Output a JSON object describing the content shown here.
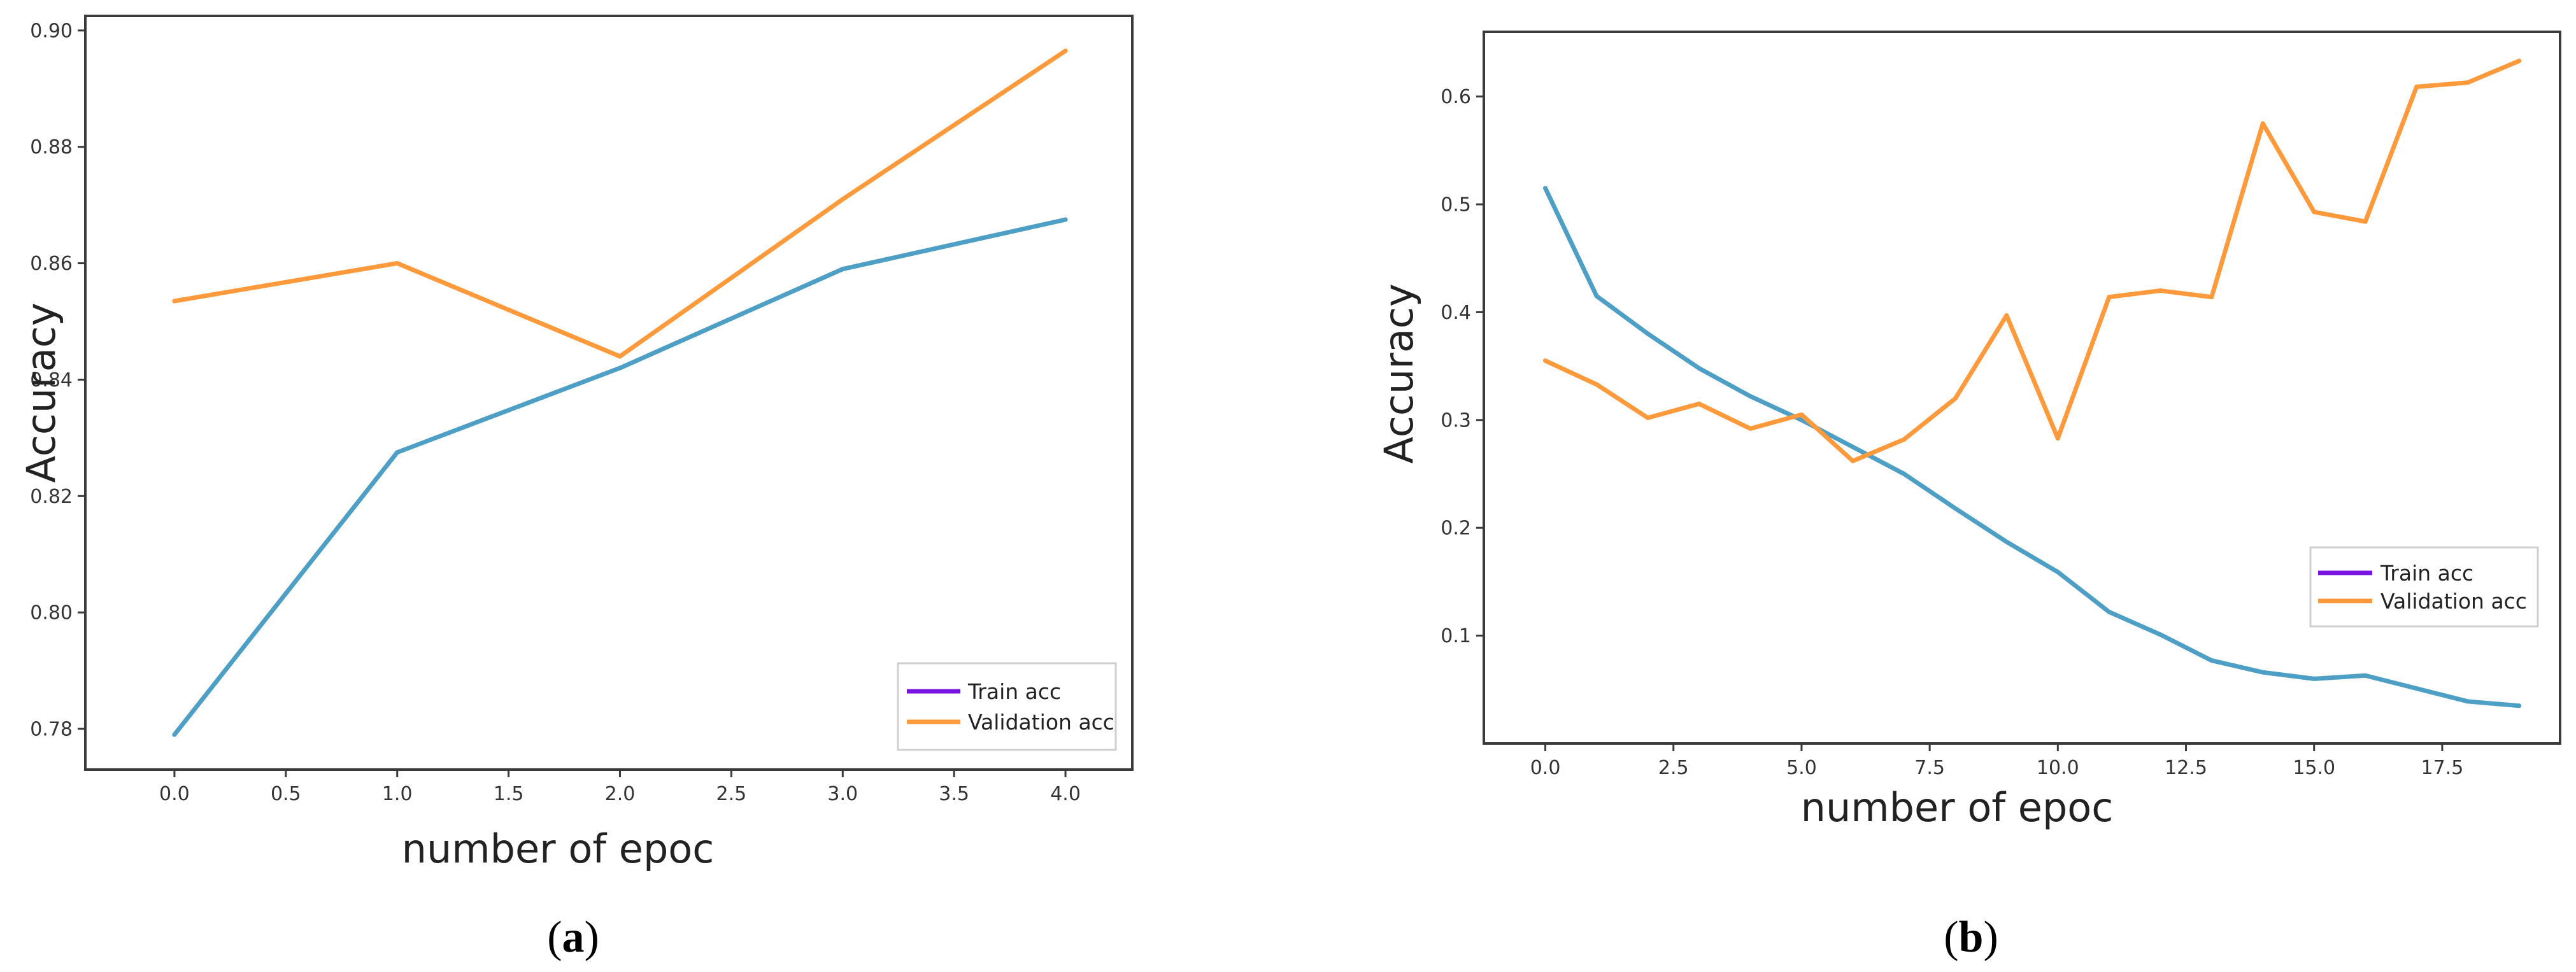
{
  "chart_data": [
    {
      "type": "line",
      "panel_label": "a",
      "title": "",
      "xlabel": "number of epoc",
      "ylabel": "Accuracy",
      "xlim": [
        -0.4,
        4.3
      ],
      "ylim": [
        0.773,
        0.9025
      ],
      "xticks": [
        0.0,
        0.5,
        1.0,
        1.5,
        2.0,
        2.5,
        3.0,
        3.5,
        4.0
      ],
      "xtick_labels": [
        "0.0",
        "0.5",
        "1.0",
        "1.5",
        "2.0",
        "2.5",
        "3.0",
        "3.5",
        "4.0"
      ],
      "yticks": [
        0.78,
        0.8,
        0.82,
        0.84,
        0.86,
        0.88,
        0.9
      ],
      "ytick_labels": [
        "0.78",
        "0.80",
        "0.82",
        "0.84",
        "0.86",
        "0.88",
        "0.90"
      ],
      "grid": false,
      "legend_position": "bottom-right",
      "x": [
        0,
        1,
        2,
        3,
        4
      ],
      "series": [
        {
          "name": "Train acc",
          "legend_color": "#7a12e0",
          "line_color": "#4e9fc6",
          "values": [
            0.779,
            0.8275,
            0.842,
            0.859,
            0.8675
          ]
        },
        {
          "name": "Validation acc",
          "legend_color": "#ff9a3c",
          "line_color": "#ff9a3c",
          "values": [
            0.8535,
            0.86,
            0.844,
            0.871,
            0.8965
          ]
        }
      ]
    },
    {
      "type": "line",
      "panel_label": "b",
      "title": "",
      "xlabel": "number of epoc",
      "ylabel": "Accuracy",
      "xlim": [
        -1.2,
        19.8
      ],
      "ylim": [
        0.0,
        0.66
      ],
      "xticks": [
        0.0,
        2.5,
        5.0,
        7.5,
        10.0,
        12.5,
        15.0,
        17.5
      ],
      "xtick_labels": [
        "0.0",
        "2.5",
        "5.0",
        "7.5",
        "10.0",
        "12.5",
        "15.0",
        "17.5"
      ],
      "yticks": [
        0.1,
        0.2,
        0.3,
        0.4,
        0.5,
        0.6
      ],
      "ytick_labels": [
        "0.1",
        "0.2",
        "0.3",
        "0.4",
        "0.5",
        "0.6"
      ],
      "grid": false,
      "legend_position": "center-right",
      "x": [
        0,
        1,
        2,
        3,
        4,
        5,
        6,
        7,
        8,
        9,
        10,
        11,
        12,
        13,
        14,
        15,
        16,
        17,
        18,
        19
      ],
      "series": [
        {
          "name": "Train acc",
          "legend_color": "#7a12e0",
          "line_color": "#4e9fc6",
          "values": [
            0.515,
            0.415,
            0.38,
            0.348,
            0.322,
            0.3,
            0.275,
            0.25,
            0.218,
            0.187,
            0.159,
            0.122,
            0.101,
            0.077,
            0.066,
            0.06,
            0.063,
            0.051,
            0.039,
            0.035
          ]
        },
        {
          "name": "Validation acc",
          "legend_color": "#ff9a3c",
          "line_color": "#ff9a3c",
          "values": [
            0.355,
            0.333,
            0.302,
            0.315,
            0.292,
            0.305,
            0.262,
            0.282,
            0.32,
            0.397,
            0.283,
            0.414,
            0.42,
            0.414,
            0.575,
            0.493,
            0.484,
            0.609,
            0.613,
            0.633
          ]
        }
      ]
    }
  ],
  "figure": {
    "label_a": "a",
    "label_b": "b"
  }
}
